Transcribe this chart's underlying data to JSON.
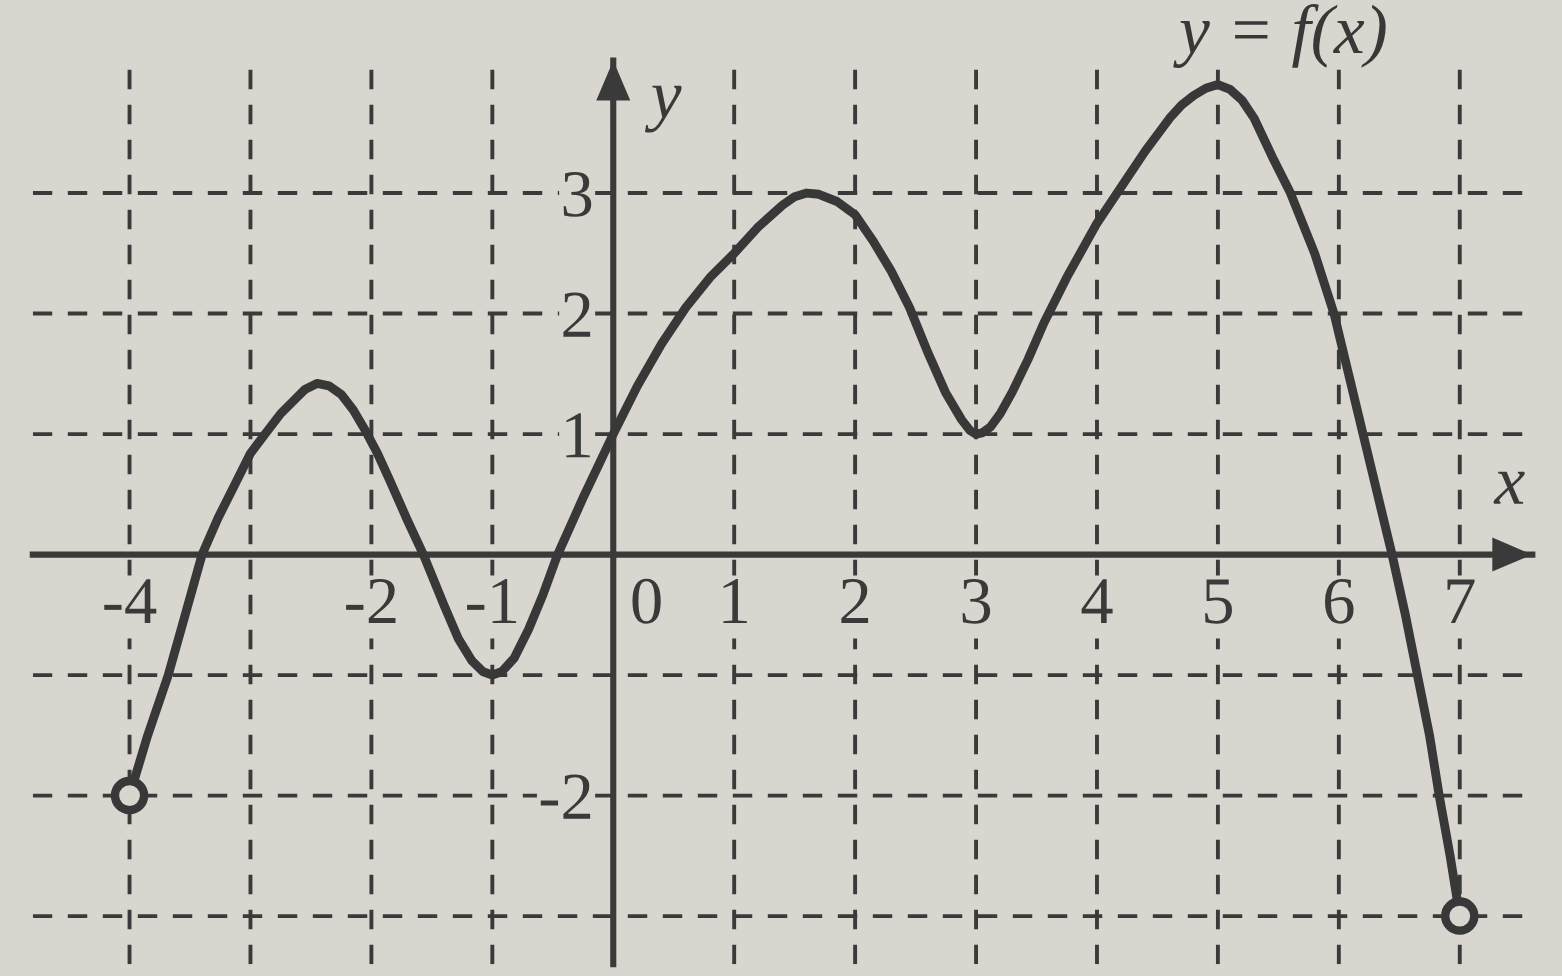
{
  "chart_data": {
    "type": "line",
    "xlabel": "x",
    "ylabel": "y",
    "xlim": [
      -4.8,
      7.6
    ],
    "ylim": [
      -3.4,
      4.1
    ],
    "xticks": [
      -4,
      {
        "value": -3,
        "label": null
      },
      -2,
      -1,
      0,
      1,
      2,
      3,
      4,
      5,
      6,
      7
    ],
    "yticks": [
      {
        "value": -3,
        "label": null
      },
      -2,
      {
        "value": -1,
        "label": null
      },
      1,
      2,
      3
    ],
    "grid": true,
    "line_style": "solid",
    "marker": "none",
    "series": [
      {
        "name": "y = f(x)",
        "color": "#383838",
        "x": [
          -4,
          -3.85,
          -3.68,
          -3.54,
          -3.4,
          -3.27,
          -3.13,
          -3.0,
          -2.88,
          -2.75,
          -2.62,
          -2.55,
          -2.45,
          -2.35,
          -2.25,
          -2.15,
          -2.05,
          -1.95,
          -1.85,
          -1.7,
          -1.57,
          -1.4,
          -1.28,
          -1.17,
          -1.08,
          -1.0,
          -0.92,
          -0.82,
          -0.7,
          -0.58,
          -0.46,
          -0.25,
          0,
          0.2,
          0.4,
          0.6,
          0.8,
          1.0,
          1.2,
          1.4,
          1.5,
          1.6,
          1.7,
          1.85,
          2.0,
          2.15,
          2.3,
          2.45,
          2.6,
          2.75,
          2.88,
          2.95,
          3.0,
          3.05,
          3.12,
          3.2,
          3.3,
          3.43,
          3.56,
          3.75,
          4.0,
          4.2,
          4.4,
          4.6,
          4.7,
          4.8,
          4.9,
          5.0,
          5.1,
          5.2,
          5.3,
          5.45,
          5.6,
          5.8,
          5.96,
          6.08,
          6.2,
          6.32,
          6.44,
          6.55,
          6.65,
          6.75,
          6.83,
          6.92,
          7
        ],
        "values": [
          -2,
          -1.5,
          -1,
          -0.5,
          0,
          0.3,
          0.58,
          0.84,
          1,
          1.17,
          1.3,
          1.37,
          1.42,
          1.4,
          1.33,
          1.2,
          1.03,
          0.84,
          0.62,
          0.28,
          0,
          -0.42,
          -0.7,
          -0.88,
          -0.97,
          -1,
          -0.97,
          -0.86,
          -0.62,
          -0.33,
          0,
          0.47,
          1,
          1.4,
          1.75,
          2.05,
          2.3,
          2.5,
          2.72,
          2.9,
          2.97,
          3,
          2.99,
          2.93,
          2.82,
          2.6,
          2.35,
          2.05,
          1.68,
          1.34,
          1.12,
          1.03,
          1,
          1.01,
          1.06,
          1.17,
          1.35,
          1.62,
          1.92,
          2.3,
          2.75,
          3.05,
          3.35,
          3.62,
          3.73,
          3.81,
          3.87,
          3.9,
          3.86,
          3.77,
          3.62,
          3.3,
          3,
          2.5,
          2,
          1.5,
          1,
          0.5,
          0,
          -0.5,
          -1,
          -1.5,
          -2,
          -2.5,
          -3
        ]
      },
      {
        "type": "scatter",
        "color": "#383838",
        "marker": "circle",
        "x": [
          -4,
          7
        ],
        "values": [
          -2,
          -3
        ]
      }
    ]
  }
}
